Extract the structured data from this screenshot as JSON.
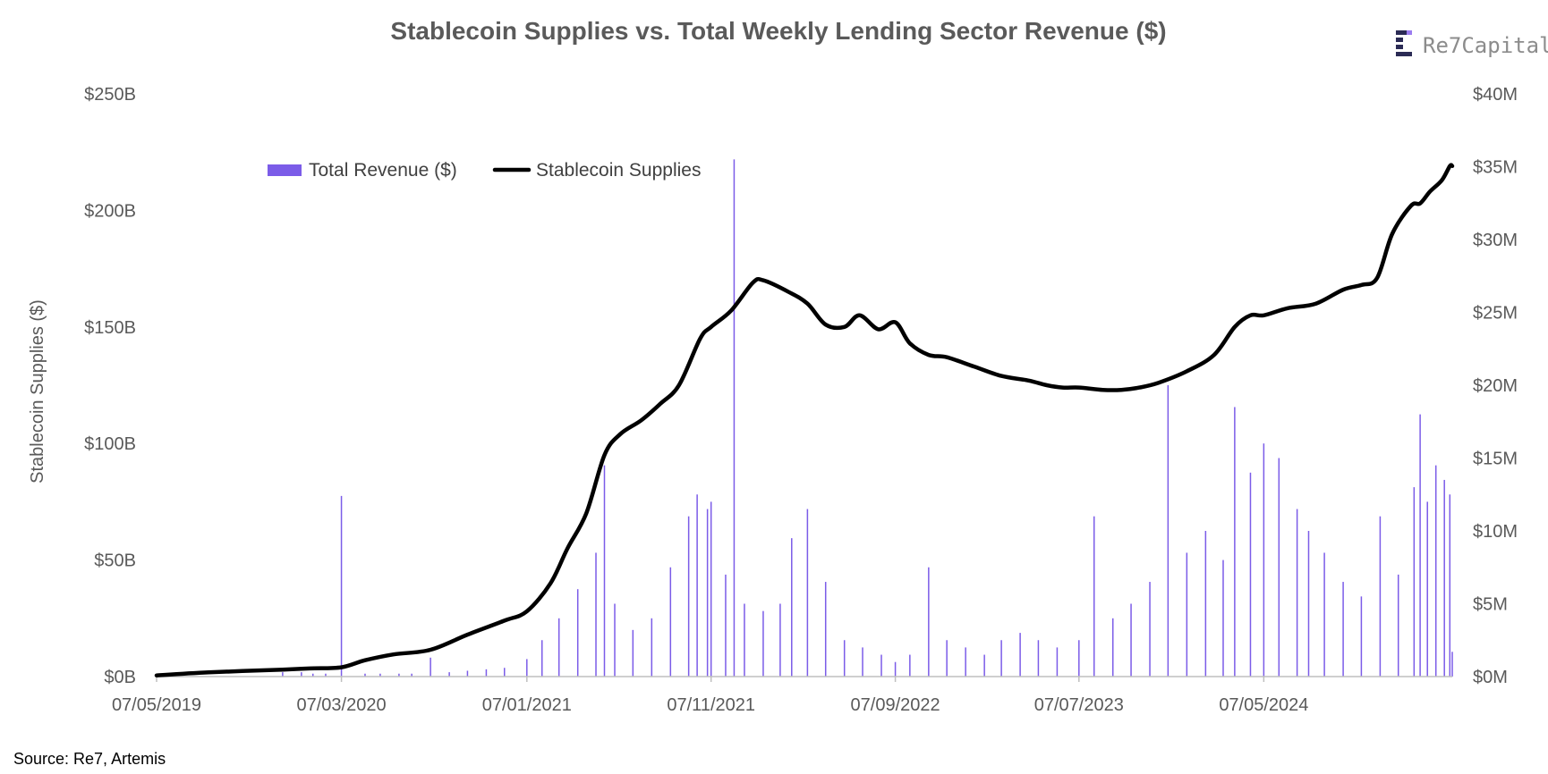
{
  "chart_data": {
    "type": "bar+line",
    "title": "Stablecoin Supplies vs. Total Weekly Lending Sector Revenue ($)",
    "ylabel_left": "Stablecoin Supplies ($)",
    "ylabel_right": "",
    "x_range": [
      "2019-05-07",
      "2025-03-14"
    ],
    "x_tick_labels": [
      "07/05/2019",
      "07/03/2020",
      "07/01/2021",
      "07/11/2021",
      "07/09/2022",
      "07/07/2023",
      "07/05/2024"
    ],
    "x_tick_dates": [
      "2019-05-07",
      "2020-03-07",
      "2021-01-07",
      "2021-11-07",
      "2022-09-07",
      "2023-07-07",
      "2024-05-07"
    ],
    "y_left": {
      "ticks": [
        "$0B",
        "$50B",
        "$100B",
        "$150B",
        "$200B",
        "$250B"
      ],
      "range": [
        0,
        250
      ],
      "unit": "B"
    },
    "y_right": {
      "ticks": [
        "$0M",
        "$5M",
        "$10M",
        "$15M",
        "$20M",
        "$25M",
        "$30M",
        "$35M",
        "$40M"
      ],
      "range": [
        0,
        40
      ],
      "unit": "M"
    },
    "legend": {
      "placement": "top-left",
      "entries": [
        "Total Revenue ($)",
        "Stablecoin Supplies"
      ]
    },
    "colors": {
      "revenue": "#7b5ce8",
      "supply": "#000000"
    },
    "series": [
      {
        "name": "Stablecoin Supplies",
        "kind": "line",
        "axis": "left",
        "points": [
          [
            "2019-05-07",
            0.5
          ],
          [
            "2019-08-01",
            1.8
          ],
          [
            "2019-12-01",
            3.0
          ],
          [
            "2020-01-15",
            3.5
          ],
          [
            "2020-03-07",
            4.0
          ],
          [
            "2020-04-15",
            7.0
          ],
          [
            "2020-06-01",
            9.5
          ],
          [
            "2020-08-01",
            11.5
          ],
          [
            "2020-10-01",
            18.0
          ],
          [
            "2020-12-01",
            24.0
          ],
          [
            "2021-01-07",
            28.0
          ],
          [
            "2021-02-15",
            40.0
          ],
          [
            "2021-03-15",
            55.0
          ],
          [
            "2021-04-15",
            70.0
          ],
          [
            "2021-05-15",
            95.0
          ],
          [
            "2021-06-10",
            104.0
          ],
          [
            "2021-07-15",
            110.0
          ],
          [
            "2021-08-15",
            117.0
          ],
          [
            "2021-09-15",
            125.0
          ],
          [
            "2021-10-20",
            145.0
          ],
          [
            "2021-11-07",
            150.0
          ],
          [
            "2021-12-10",
            157.0
          ],
          [
            "2022-01-15",
            169.0
          ],
          [
            "2022-02-01",
            170.0
          ],
          [
            "2022-03-15",
            165.0
          ],
          [
            "2022-04-15",
            160.0
          ],
          [
            "2022-05-15",
            151.0
          ],
          [
            "2022-06-15",
            150.0
          ],
          [
            "2022-07-10",
            155.0
          ],
          [
            "2022-08-10",
            149.0
          ],
          [
            "2022-09-07",
            152.0
          ],
          [
            "2022-10-01",
            143.0
          ],
          [
            "2022-11-01",
            138.0
          ],
          [
            "2022-12-01",
            137.0
          ],
          [
            "2023-01-15",
            133.0
          ],
          [
            "2023-03-01",
            129.0
          ],
          [
            "2023-04-15",
            127.0
          ],
          [
            "2023-05-15",
            125.0
          ],
          [
            "2023-06-10",
            124.0
          ],
          [
            "2023-07-07",
            124.0
          ],
          [
            "2023-08-15",
            123.0
          ],
          [
            "2023-09-15",
            123.0
          ],
          [
            "2023-10-15",
            124.0
          ],
          [
            "2023-11-15",
            126.0
          ],
          [
            "2024-01-01",
            131.0
          ],
          [
            "2024-02-15",
            138.0
          ],
          [
            "2024-03-20",
            150.0
          ],
          [
            "2024-04-15",
            155.0
          ],
          [
            "2024-05-07",
            155.0
          ],
          [
            "2024-06-15",
            158.0
          ],
          [
            "2024-08-01",
            160.0
          ],
          [
            "2024-09-15",
            166.0
          ],
          [
            "2024-10-15",
            168.0
          ],
          [
            "2024-11-10",
            171.0
          ],
          [
            "2024-12-05",
            190.0
          ],
          [
            "2025-01-05",
            202.0
          ],
          [
            "2025-01-20",
            203.0
          ],
          [
            "2025-02-05",
            208.0
          ],
          [
            "2025-02-25",
            213.0
          ],
          [
            "2025-03-10",
            219.0
          ],
          [
            "2025-03-14",
            219.0
          ]
        ]
      },
      {
        "name": "Total Revenue ($)",
        "kind": "bar",
        "axis": "right",
        "points": [
          [
            "2019-12-01",
            0.3
          ],
          [
            "2020-01-01",
            0.3
          ],
          [
            "2020-01-20",
            0.2
          ],
          [
            "2020-02-10",
            0.2
          ],
          [
            "2020-03-07",
            12.4
          ],
          [
            "2020-04-15",
            0.2
          ],
          [
            "2020-05-10",
            0.2
          ],
          [
            "2020-06-10",
            0.2
          ],
          [
            "2020-07-01",
            0.2
          ],
          [
            "2020-08-01",
            1.3
          ],
          [
            "2020-09-01",
            0.3
          ],
          [
            "2020-10-01",
            0.4
          ],
          [
            "2020-11-01",
            0.5
          ],
          [
            "2020-12-01",
            0.6
          ],
          [
            "2021-01-07",
            1.2
          ],
          [
            "2021-02-01",
            2.5
          ],
          [
            "2021-03-01",
            4.0
          ],
          [
            "2021-04-01",
            6.0
          ],
          [
            "2021-05-01",
            8.5
          ],
          [
            "2021-05-15",
            14.5
          ],
          [
            "2021-06-01",
            5.0
          ],
          [
            "2021-07-01",
            3.2
          ],
          [
            "2021-08-01",
            4.0
          ],
          [
            "2021-09-01",
            7.5
          ],
          [
            "2021-10-01",
            11.0
          ],
          [
            "2021-10-15",
            12.5
          ],
          [
            "2021-11-01",
            11.5
          ],
          [
            "2021-11-07",
            12.0
          ],
          [
            "2021-12-01",
            7.0
          ],
          [
            "2021-12-15",
            35.5
          ],
          [
            "2022-01-01",
            5.0
          ],
          [
            "2022-02-01",
            4.5
          ],
          [
            "2022-03-01",
            5.0
          ],
          [
            "2022-03-20",
            9.5
          ],
          [
            "2022-04-15",
            11.5
          ],
          [
            "2022-05-15",
            6.5
          ],
          [
            "2022-06-15",
            2.5
          ],
          [
            "2022-07-15",
            2.0
          ],
          [
            "2022-08-15",
            1.5
          ],
          [
            "2022-09-07",
            1.0
          ],
          [
            "2022-10-01",
            1.5
          ],
          [
            "2022-11-01",
            7.5
          ],
          [
            "2022-12-01",
            2.5
          ],
          [
            "2023-01-01",
            2.0
          ],
          [
            "2023-02-01",
            1.5
          ],
          [
            "2023-03-01",
            2.5
          ],
          [
            "2023-04-01",
            3.0
          ],
          [
            "2023-05-01",
            2.5
          ],
          [
            "2023-06-01",
            2.0
          ],
          [
            "2023-07-07",
            2.5
          ],
          [
            "2023-08-01",
            11.0
          ],
          [
            "2023-09-01",
            4.0
          ],
          [
            "2023-10-01",
            5.0
          ],
          [
            "2023-11-01",
            6.5
          ],
          [
            "2023-12-01",
            20.0
          ],
          [
            "2024-01-01",
            8.5
          ],
          [
            "2024-02-01",
            10.0
          ],
          [
            "2024-03-01",
            8.0
          ],
          [
            "2024-03-20",
            18.5
          ],
          [
            "2024-04-15",
            14.0
          ],
          [
            "2024-05-07",
            16.0
          ],
          [
            "2024-06-01",
            15.0
          ],
          [
            "2024-07-01",
            11.5
          ],
          [
            "2024-07-20",
            10.0
          ],
          [
            "2024-08-15",
            8.5
          ],
          [
            "2024-09-15",
            6.5
          ],
          [
            "2024-10-15",
            5.5
          ],
          [
            "2024-11-15",
            11.0
          ],
          [
            "2024-12-15",
            7.0
          ],
          [
            "2025-01-10",
            13.0
          ],
          [
            "2025-01-20",
            18.0
          ],
          [
            "2025-02-01",
            12.0
          ],
          [
            "2025-02-15",
            14.5
          ],
          [
            "2025-03-01",
            13.5
          ],
          [
            "2025-03-10",
            12.5
          ],
          [
            "2025-03-14",
            1.7
          ]
        ]
      }
    ]
  },
  "legend": {
    "revenue_label": "Total Revenue ($)",
    "supply_label": "Stablecoin Supplies"
  },
  "source_text": "Source: Re7,  Artemis",
  "logo": {
    "text": "Re7Capital",
    "icon": "re7-logo-icon"
  }
}
